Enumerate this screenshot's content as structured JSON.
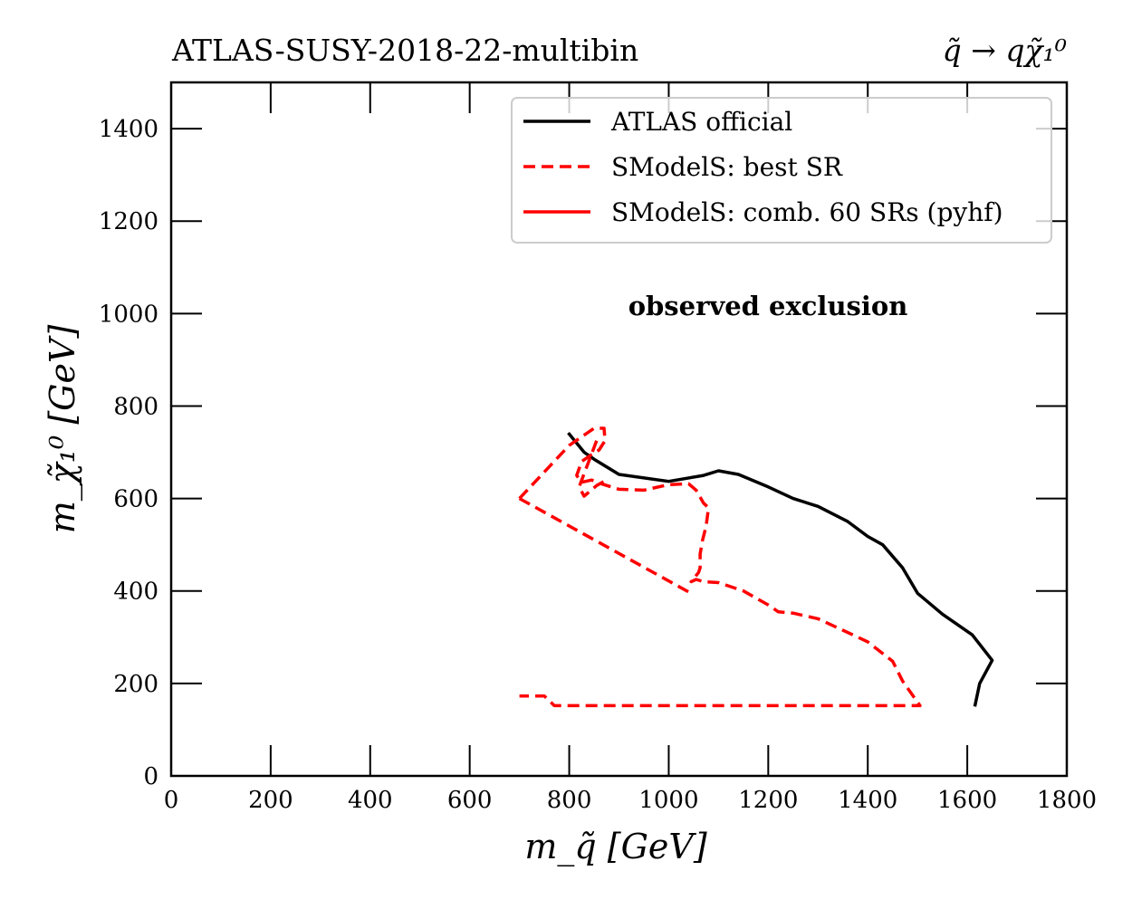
{
  "chart_data": {
    "type": "line",
    "title": "ATLAS-SUSY-2018-22-multibin",
    "subtitle": "q̃ → qχ̃₁⁰",
    "xlabel": "m_q̃ [GeV]",
    "ylabel": "m_χ̃₁⁰ [GeV]",
    "xlim": [
      0,
      1800
    ],
    "ylim": [
      0,
      1500
    ],
    "xticks": [
      0,
      200,
      400,
      600,
      800,
      1000,
      1200,
      1400,
      1600,
      1800
    ],
    "yticks": [
      0,
      200,
      400,
      600,
      800,
      1000,
      1200,
      1400
    ],
    "xtick_labels": [
      "0",
      "200",
      "400",
      "600",
      "800",
      "1000",
      "1200",
      "1400",
      "1600",
      "1800"
    ],
    "ytick_labels": [
      "0",
      "200",
      "400",
      "600",
      "800",
      "1000",
      "1200",
      "1400"
    ],
    "grid": false,
    "legend_position": "top-right",
    "annotation": "observed exclusion",
    "series": [
      {
        "name": "ATLAS official",
        "color": "#000000",
        "style": "solid",
        "x": [
          798,
          830,
          850,
          900,
          1000,
          1070,
          1100,
          1140,
          1200,
          1250,
          1300,
          1360,
          1400,
          1430,
          1470,
          1500,
          1550,
          1610,
          1650,
          1625,
          1615
        ],
        "y": [
          742,
          700,
          685,
          652,
          637,
          650,
          660,
          652,
          625,
          600,
          583,
          550,
          518,
          500,
          450,
          395,
          350,
          305,
          250,
          200,
          150
        ]
      },
      {
        "name": "SModelS: best SR",
        "color": "#ff0000",
        "style": "dashed",
        "x": [
          700,
          800,
          850,
          870,
          872,
          860,
          845,
          825,
          815,
          825,
          845,
          870,
          900,
          950,
          1000,
          1040,
          1055,
          1070,
          1080,
          1075,
          1068,
          1063,
          1063,
          1060,
          1045,
          1055,
          1070,
          1100,
          1150,
          1200,
          1220,
          1250,
          1300,
          1350,
          1400,
          1450,
          1470,
          1505,
          770,
          750,
          700
        ],
        "y": [
          600,
          715,
          752,
          752,
          725,
          705,
          695,
          680,
          650,
          635,
          640,
          630,
          620,
          618,
          630,
          632,
          618,
          590,
          580,
          540,
          510,
          480,
          450,
          440,
          420,
          425,
          420,
          418,
          400,
          370,
          355,
          352,
          340,
          315,
          290,
          248,
          205,
          152,
          152,
          173,
          173
        ]
      },
      {
        "name": "SModelS: comb. 60 SRs (pyhf)",
        "color": "#ff0000",
        "style": "solid",
        "x": [],
        "y": []
      },
      {
        "name": "",
        "color": "#ff0000",
        "style": "dashed",
        "x": [
          700,
          1040
        ],
        "y": [
          600,
          398
        ]
      },
      {
        "name": "",
        "color": "#ff0000",
        "style": "dashed",
        "x": [
          855,
          820,
          830,
          855,
          875
        ],
        "y": [
          725,
          625,
          605,
          628,
          640
        ]
      }
    ]
  },
  "legend": {
    "items": [
      {
        "label": "ATLAS official",
        "color": "#000000",
        "style": "solid"
      },
      {
        "label": "SModelS: best SR",
        "color": "#ff0000",
        "style": "dashed"
      },
      {
        "label": "SModelS: comb. 60 SRs (pyhf)",
        "color": "#ff0000",
        "style": "solid"
      }
    ]
  }
}
